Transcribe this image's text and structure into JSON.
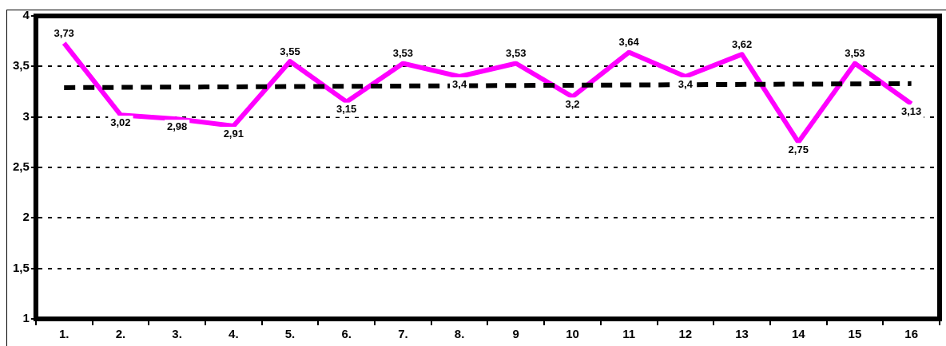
{
  "chart_data": {
    "type": "line",
    "categories": [
      "1.",
      "2.",
      "3.",
      "4.",
      "5.",
      "6.",
      "7.",
      "8.",
      "9",
      "10",
      "11",
      "12",
      "13",
      "14",
      "15",
      "16"
    ],
    "series": [
      {
        "color": "#ff00ff",
        "values": [
          3.73,
          3.02,
          2.98,
          2.91,
          3.55,
          3.15,
          3.53,
          3.4,
          3.53,
          3.2,
          3.64,
          3.4,
          3.62,
          2.75,
          3.53,
          3.13
        ],
        "value_labels": [
          "3,73",
          "3,02",
          "2,98",
          "2,91",
          "3,55",
          "3,15",
          "3,53",
          "3,4",
          "3,53",
          "3,2",
          "3,64",
          "3,4",
          "3,62",
          "2,75",
          "3,53",
          "3,13"
        ],
        "line_style": "solid"
      },
      {
        "color": "#000000",
        "x": [
          "1.",
          "16"
        ],
        "values": [
          3.29,
          3.33
        ],
        "line_style": "dashed"
      }
    ],
    "ylim": [
      1,
      4
    ],
    "yticks": [
      {
        "value": 1,
        "label": "1"
      },
      {
        "value": 1.5,
        "label": "1,5"
      },
      {
        "value": 2,
        "label": "2"
      },
      {
        "value": 2.5,
        "label": "2,5"
      },
      {
        "value": 3,
        "label": "3"
      },
      {
        "value": 3.5,
        "label": "3,5"
      },
      {
        "value": 4,
        "label": "4"
      }
    ],
    "grid": "y",
    "marker": "none",
    "legend": false
  }
}
